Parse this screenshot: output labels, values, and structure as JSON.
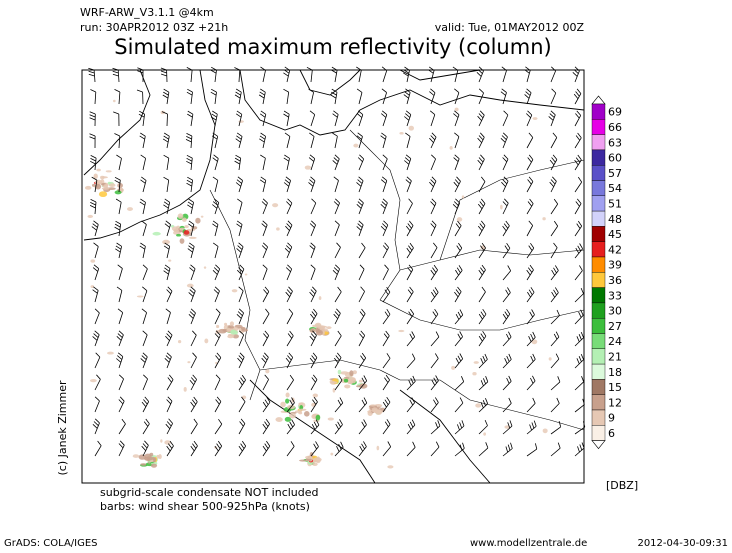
{
  "header": {
    "model": "WRF-ARW_V3.1.1 @4km",
    "run": "run: 30APR2012 03Z +21h",
    "valid": "valid: Tue, 01MAY2012 00Z",
    "title": "Simulated maximum reflectivity (column)"
  },
  "colorbar": {
    "unit": "[DBZ]",
    "labels": [
      69,
      66,
      63,
      60,
      57,
      54,
      51,
      48,
      45,
      42,
      39,
      36,
      33,
      30,
      27,
      24,
      21,
      18,
      15,
      12,
      9,
      6
    ],
    "colors": [
      "#a000c8",
      "#e600e6",
      "#f0a0f0",
      "#3c28a0",
      "#5a50c8",
      "#7878dc",
      "#a0a0f0",
      "#d2d2fa",
      "#a00000",
      "#e61e1e",
      "#ff8c00",
      "#ffc83c",
      "#007800",
      "#1ea01e",
      "#3cbe3c",
      "#78dc78",
      "#b4f0b4",
      "#dcfadc",
      "#a07864",
      "#c8a08c",
      "#e6c8b4",
      "#faf0e6"
    ]
  },
  "notes": [
    "subgrid-scale condensate NOT included",
    "barbs: wind shear 500-925hPa (knots)"
  ],
  "credit": "(c) Janek Zimmer",
  "footer": {
    "left": "GrADS: COLA/IGES",
    "center": "www.modellzentrale.de",
    "right": "2012-04-30-09:31"
  }
}
